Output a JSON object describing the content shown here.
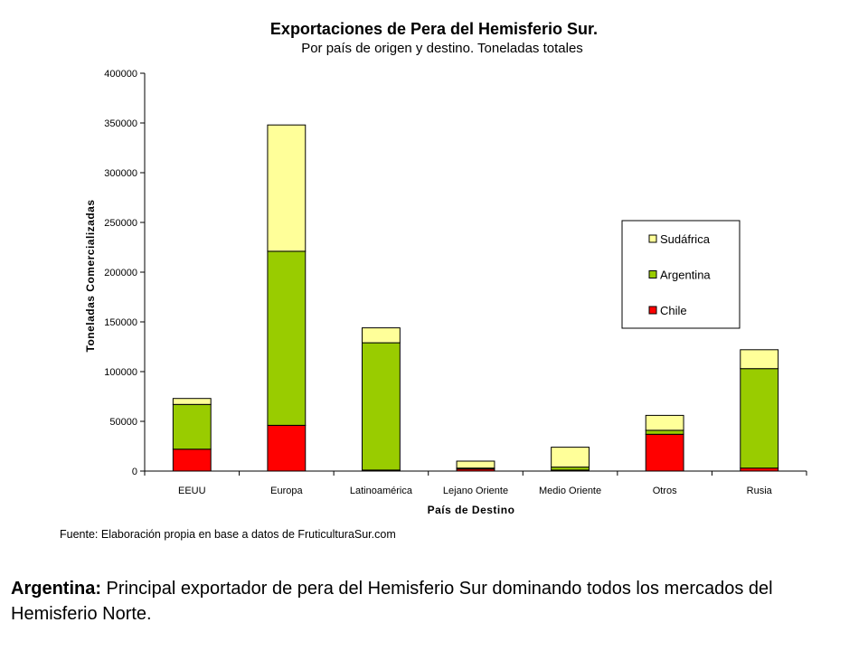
{
  "chart_data": {
    "type": "bar",
    "stacked": true,
    "title": "Exportaciones de Pera del Hemisferio Sur.",
    "subtitle": "Por país de origen y destino. Toneladas totales",
    "xlabel": "País de Destino",
    "ylabel": "Toneladas Comercializadas",
    "ylim": [
      0,
      400000
    ],
    "yticks": [
      "0",
      "50000",
      "100000",
      "150000",
      "200000",
      "250000",
      "300000",
      "350000",
      "400000"
    ],
    "categories": [
      "EEUU",
      "Europa",
      "Latinoamérica",
      "Lejano Oriente",
      "Medio Oriente",
      "Otros",
      "Rusia"
    ],
    "series": [
      {
        "name": "Chile",
        "color": "#ff0000",
        "values": [
          22000,
          46000,
          1000,
          2000,
          1000,
          37000,
          3000
        ]
      },
      {
        "name": "Argentina",
        "color": "#99cc00",
        "values": [
          45000,
          175000,
          128000,
          1000,
          3000,
          4000,
          100000
        ]
      },
      {
        "name": "Sudáfrica",
        "color": "#ffff99",
        "values": [
          6000,
          127000,
          15000,
          7000,
          20000,
          15000,
          19000
        ]
      }
    ],
    "legend_position": "right",
    "grid": false
  },
  "source_text": "Fuente: Elaboración propia en base a datos de FruticulturaSur.com",
  "caption": {
    "bold": "Argentina:",
    "text": " Principal exportador de pera del Hemisferio Sur dominando todos los mercados del Hemisferio Norte."
  }
}
